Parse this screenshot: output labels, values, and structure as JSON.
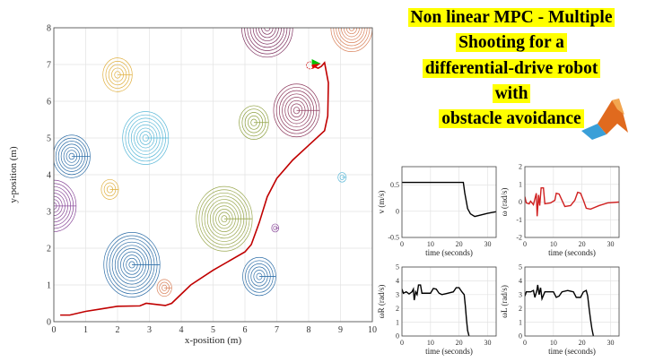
{
  "title_lines": [
    "Non linear MPC - Multiple",
    "Shooting for a",
    "differential-drive robot",
    "with",
    "obstacle avoidance"
  ],
  "logo": "matlab-logo",
  "colors": {
    "highlight": "#ffff00",
    "trajectory": "#c00000",
    "omega": "#d02020",
    "signal": "#000000",
    "robot_front": "#00c000",
    "robot_back": "#e00000"
  },
  "chart_data": [
    {
      "type": "line",
      "xlabel": "x-position (m)",
      "ylabel": "y-position (m)",
      "xlim": [
        0,
        10
      ],
      "ylim": [
        0,
        8
      ],
      "grid": true,
      "xticks": [
        0,
        1,
        2,
        3,
        4,
        5,
        6,
        7,
        8,
        9,
        10
      ],
      "yticks": [
        0,
        1,
        2,
        3,
        4,
        5,
        6,
        7,
        8
      ],
      "trajectory": [
        [
          0.2,
          0.18
        ],
        [
          0.5,
          0.18
        ],
        [
          1,
          0.28
        ],
        [
          1.5,
          0.35
        ],
        [
          2,
          0.42
        ],
        [
          2.7,
          0.43
        ],
        [
          2.9,
          0.5
        ],
        [
          3.2,
          0.47
        ],
        [
          3.5,
          0.44
        ],
        [
          3.7,
          0.5
        ],
        [
          4,
          0.75
        ],
        [
          4.3,
          1.0
        ],
        [
          5,
          1.4
        ],
        [
          6,
          1.9
        ],
        [
          6.2,
          2.1
        ],
        [
          6.45,
          2.7
        ],
        [
          6.7,
          3.4
        ],
        [
          7,
          3.9
        ],
        [
          7.5,
          4.4
        ],
        [
          8,
          4.8
        ],
        [
          8.5,
          5.2
        ],
        [
          8.6,
          5.6
        ],
        [
          8.62,
          6.5
        ],
        [
          8.5,
          7.05
        ],
        [
          8.4,
          6.95
        ],
        [
          8.3,
          6.9
        ],
        [
          8.1,
          6.97
        ]
      ],
      "robot": [
        8.1,
        7.0
      ],
      "obstacles": [
        {
          "c": [
            6.7,
            8.0
          ],
          "r": 0.8,
          "color": "#7e2f5e"
        },
        {
          "c": [
            9.35,
            8.0
          ],
          "r": 0.65,
          "color": "#d9825b"
        },
        {
          "c": [
            2.0,
            6.72
          ],
          "r": 0.46,
          "color": "#e0b040"
        },
        {
          "c": [
            7.62,
            5.75
          ],
          "r": 0.72,
          "color": "#8e3a5e"
        },
        {
          "c": [
            6.28,
            5.42
          ],
          "r": 0.46,
          "color": "#8ea040"
        },
        {
          "c": [
            2.88,
            5.0
          ],
          "r": 0.72,
          "color": "#5ab8d8"
        },
        {
          "c": [
            0.56,
            4.5
          ],
          "r": 0.58,
          "color": "#2f6fa8"
        },
        {
          "c": [
            1.76,
            3.6
          ],
          "r": 0.27,
          "color": "#e0b040"
        },
        {
          "c": [
            0.0,
            3.15
          ],
          "r": 0.7,
          "color": "#8a4a9a"
        },
        {
          "c": [
            5.35,
            2.8
          ],
          "r": 0.88,
          "color": "#9aa850"
        },
        {
          "c": [
            6.95,
            2.55
          ],
          "r": 0.11,
          "color": "#8a4a9a"
        },
        {
          "c": [
            9.05,
            3.93
          ],
          "r": 0.13,
          "color": "#5ab8d8"
        },
        {
          "c": [
            2.45,
            1.55
          ],
          "r": 0.88,
          "color": "#2f6fa8"
        },
        {
          "c": [
            3.47,
            0.92
          ],
          "r": 0.23,
          "color": "#d9825b"
        },
        {
          "c": [
            6.45,
            1.23
          ],
          "r": 0.52,
          "color": "#2f6fa8"
        }
      ]
    },
    {
      "type": "line",
      "xlabel": "time (seconds)",
      "ylabel": "v (m/s)",
      "xlim": [
        0,
        33
      ],
      "ylim": [
        -0.5,
        0.85
      ],
      "xticks": [
        0,
        10,
        20,
        30
      ],
      "yticks": [
        -0.5,
        0,
        0.5
      ],
      "grid": true,
      "color": "#000000",
      "points": [
        [
          0,
          0.55
        ],
        [
          21.5,
          0.55
        ],
        [
          22,
          0.35
        ],
        [
          22.5,
          0.2
        ],
        [
          23,
          0.05
        ],
        [
          24,
          -0.05
        ],
        [
          25.5,
          -0.1
        ],
        [
          27,
          -0.08
        ],
        [
          30,
          -0.04
        ],
        [
          33,
          -0.01
        ]
      ]
    },
    {
      "type": "line",
      "xlabel": "time (seconds)",
      "ylabel": "ω (rad/s)",
      "xlim": [
        0,
        33
      ],
      "ylim": [
        -2,
        2
      ],
      "xticks": [
        0,
        10,
        20,
        30
      ],
      "yticks": [
        -2,
        -1,
        0,
        1,
        2
      ],
      "grid": true,
      "color": "#d02020",
      "points": [
        [
          0,
          0.3
        ],
        [
          0.5,
          -0.05
        ],
        [
          1.5,
          -0.1
        ],
        [
          2,
          0.05
        ],
        [
          3,
          -0.15
        ],
        [
          4,
          0.5
        ],
        [
          4.3,
          -0.8
        ],
        [
          4.8,
          0.4
        ],
        [
          5.2,
          -0.2
        ],
        [
          5.7,
          0.8
        ],
        [
          6.5,
          0.8
        ],
        [
          7,
          -0.1
        ],
        [
          9,
          -0.05
        ],
        [
          10.5,
          0.1
        ],
        [
          11,
          0.5
        ],
        [
          12,
          0.45
        ],
        [
          13,
          0.1
        ],
        [
          14,
          -0.25
        ],
        [
          16,
          -0.2
        ],
        [
          17.5,
          0.1
        ],
        [
          18.5,
          0.55
        ],
        [
          19.5,
          0.5
        ],
        [
          20.5,
          0.1
        ],
        [
          21.5,
          -0.35
        ],
        [
          23,
          -0.4
        ],
        [
          26,
          -0.2
        ],
        [
          29,
          -0.05
        ],
        [
          33,
          0
        ]
      ]
    },
    {
      "type": "line",
      "xlabel": "time (seconds)",
      "ylabel": "ωR (rad/s)",
      "xlim": [
        0,
        33
      ],
      "ylim": [
        0,
        5
      ],
      "xticks": [
        0,
        10,
        20,
        30
      ],
      "yticks": [
        0,
        1,
        2,
        3,
        4,
        5
      ],
      "grid": true,
      "color": "#000000",
      "points": [
        [
          0,
          3.4
        ],
        [
          0.5,
          3.1
        ],
        [
          1.5,
          3.2
        ],
        [
          2.5,
          3.05
        ],
        [
          3.5,
          3.2
        ],
        [
          4,
          3.4
        ],
        [
          4.3,
          2.6
        ],
        [
          4.8,
          3.2
        ],
        [
          5.3,
          3.0
        ],
        [
          5.8,
          3.7
        ],
        [
          6.5,
          3.7
        ],
        [
          7,
          3.1
        ],
        [
          10,
          3.1
        ],
        [
          11,
          3.45
        ],
        [
          12,
          3.4
        ],
        [
          13,
          3.1
        ],
        [
          14,
          3.0
        ],
        [
          16,
          3.1
        ],
        [
          18,
          3.2
        ],
        [
          19,
          3.5
        ],
        [
          20,
          3.5
        ],
        [
          21,
          3.2
        ],
        [
          21.8,
          3.0
        ],
        [
          22.2,
          2.2
        ],
        [
          22.6,
          1.2
        ],
        [
          23,
          0.4
        ],
        [
          23.5,
          0
        ]
      ]
    },
    {
      "type": "line",
      "xlabel": "time (seconds)",
      "ylabel": "ωL (rad/s)",
      "xlim": [
        0,
        33
      ],
      "ylim": [
        0,
        5
      ],
      "xticks": [
        0,
        10,
        20,
        30
      ],
      "yticks": [
        0,
        1,
        2,
        3,
        4,
        5
      ],
      "grid": true,
      "color": "#000000",
      "points": [
        [
          0,
          2.9
        ],
        [
          0.5,
          3.2
        ],
        [
          2,
          3.2
        ],
        [
          3,
          3.3
        ],
        [
          3.5,
          2.8
        ],
        [
          4.2,
          3.3
        ],
        [
          4.5,
          3.7
        ],
        [
          5,
          3.0
        ],
        [
          5.5,
          3.5
        ],
        [
          6,
          2.7
        ],
        [
          7,
          3.2
        ],
        [
          10,
          3.2
        ],
        [
          11,
          2.8
        ],
        [
          12,
          2.9
        ],
        [
          13,
          3.2
        ],
        [
          15,
          3.3
        ],
        [
          17,
          3.2
        ],
        [
          18,
          2.8
        ],
        [
          19.5,
          2.8
        ],
        [
          20.5,
          3.2
        ],
        [
          21.5,
          3.3
        ],
        [
          22,
          2.9
        ],
        [
          22.5,
          2.0
        ],
        [
          23,
          1.2
        ],
        [
          23.5,
          0.5
        ],
        [
          24,
          0
        ]
      ]
    }
  ]
}
